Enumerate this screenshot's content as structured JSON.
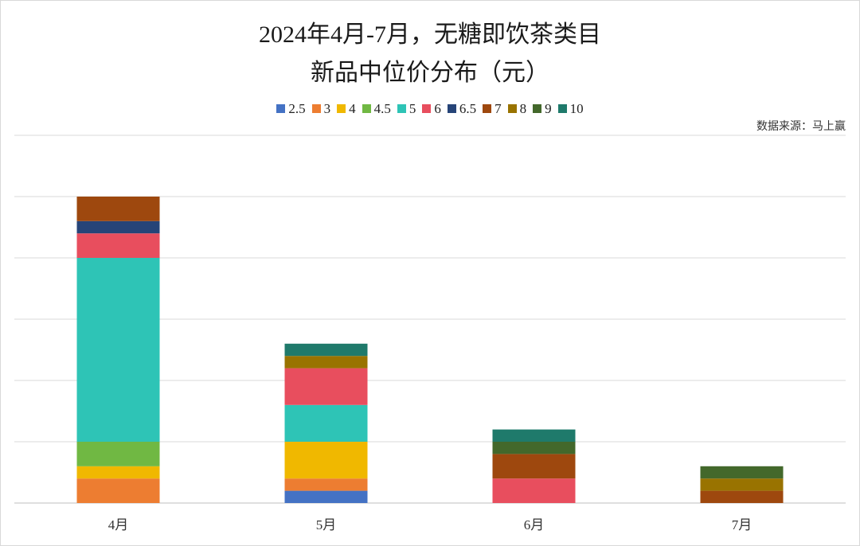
{
  "chart_data": {
    "type": "bar",
    "stacked": true,
    "title_line1": "2024年4月-7月，无糖即饮茶类目",
    "title_line2": "新品中位价分布（元）",
    "source": "数据来源：马上赢",
    "categories": [
      "4月",
      "5月",
      "6月",
      "7月"
    ],
    "ylim": [
      0,
      30
    ],
    "grid": true,
    "legend_position": "top",
    "series": [
      {
        "name": "2.5",
        "color": "#4472c4",
        "values": [
          0,
          1,
          0,
          0
        ]
      },
      {
        "name": "3",
        "color": "#ed7d31",
        "values": [
          2,
          1,
          0,
          0
        ]
      },
      {
        "name": "4",
        "color": "#f0b800",
        "values": [
          1,
          3,
          0,
          0
        ]
      },
      {
        "name": "4.5",
        "color": "#70b843",
        "values": [
          2,
          0,
          0,
          0
        ]
      },
      {
        "name": "5",
        "color": "#2ec4b6",
        "values": [
          15,
          3,
          0,
          0
        ]
      },
      {
        "name": "6",
        "color": "#e84e5e",
        "values": [
          2,
          3,
          2,
          0
        ]
      },
      {
        "name": "6.5",
        "color": "#264478",
        "values": [
          1,
          0,
          0,
          0
        ]
      },
      {
        "name": "7",
        "color": "#9e480e",
        "values": [
          2,
          0,
          2,
          1
        ]
      },
      {
        "name": "8",
        "color": "#997300",
        "values": [
          0,
          1,
          0,
          1
        ]
      },
      {
        "name": "9",
        "color": "#43682b",
        "values": [
          0,
          0,
          1,
          1
        ]
      },
      {
        "name": "10",
        "color": "#1f7a6b",
        "values": [
          0,
          1,
          1,
          0
        ]
      }
    ]
  }
}
